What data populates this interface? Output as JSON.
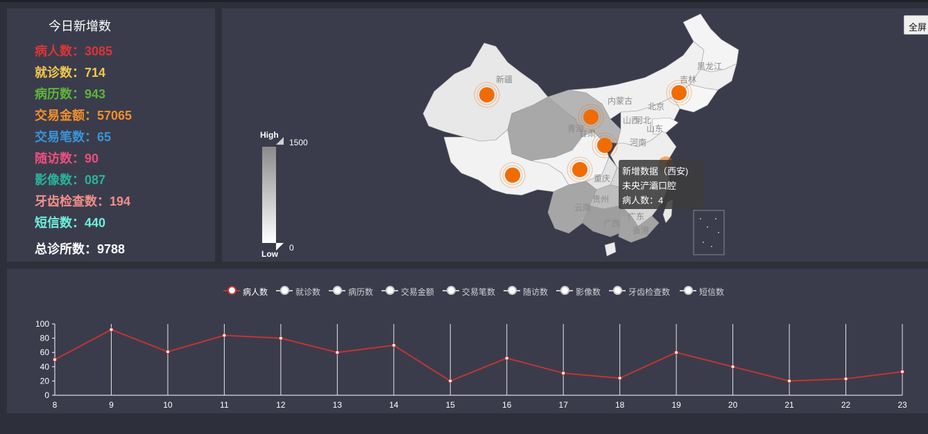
{
  "stats": {
    "title": "今日新增数",
    "items": [
      {
        "label": "病人数：",
        "value": "3085",
        "color": "#dc3535"
      },
      {
        "label": "就诊数：",
        "value": "714",
        "color": "#f2c94c"
      },
      {
        "label": "病历数：",
        "value": "943",
        "color": "#5fb53a"
      },
      {
        "label": "交易金额：",
        "value": "57065",
        "color": "#f58f2a"
      },
      {
        "label": "交易笔数：",
        "value": "65",
        "color": "#3a94d9"
      },
      {
        "label": "随访数：",
        "value": "90",
        "color": "#ec4f7e"
      },
      {
        "label": "影像数：",
        "value": "087",
        "color": "#2bb39a"
      },
      {
        "label": "牙齿检查数：",
        "value": "194",
        "color": "#f28f8a"
      },
      {
        "label": "短信数：",
        "value": "440",
        "color": "#6ff0dc"
      }
    ],
    "total_label": "总诊所数：",
    "total_value": "9788"
  },
  "map": {
    "fullscreen_label": "全屏",
    "visual_map": {
      "high_label": "High",
      "low_label": "Low",
      "max": "1500",
      "min": "0"
    },
    "province_labels": [
      "新疆",
      "黑龙江",
      "吉林",
      "内蒙古",
      "北京",
      "山西",
      "河北",
      "山东",
      "青海",
      "甘肃",
      "河南",
      "重庆",
      "贵州",
      "云南",
      "广西",
      "广东",
      "香港"
    ],
    "hotspot_color": "#f06c00",
    "tooltip": {
      "title": "新增数据（西安)",
      "clinic": "未央浐灞口腔",
      "metric": "病人数：4"
    }
  },
  "legend": {
    "items": [
      "病人数",
      "就诊数",
      "病历数",
      "交易金额",
      "交易笔数",
      "随访数",
      "影像数",
      "牙齿检查数",
      "短信数"
    ],
    "active": "病人数"
  },
  "chart_data": {
    "type": "line",
    "x": [
      8,
      9,
      10,
      11,
      12,
      13,
      14,
      15,
      16,
      17,
      18,
      19,
      20,
      21,
      22,
      23
    ],
    "series": [
      {
        "name": "病人数",
        "color": "#c23531",
        "values": [
          50,
          92,
          61,
          84,
          80,
          60,
          70,
          20,
          52,
          31,
          24,
          60,
          40,
          20,
          23,
          33
        ]
      }
    ],
    "ylim": [
      0,
      100
    ],
    "yticks": [
      0,
      20,
      40,
      60,
      80,
      100
    ],
    "grid": "vertical"
  }
}
